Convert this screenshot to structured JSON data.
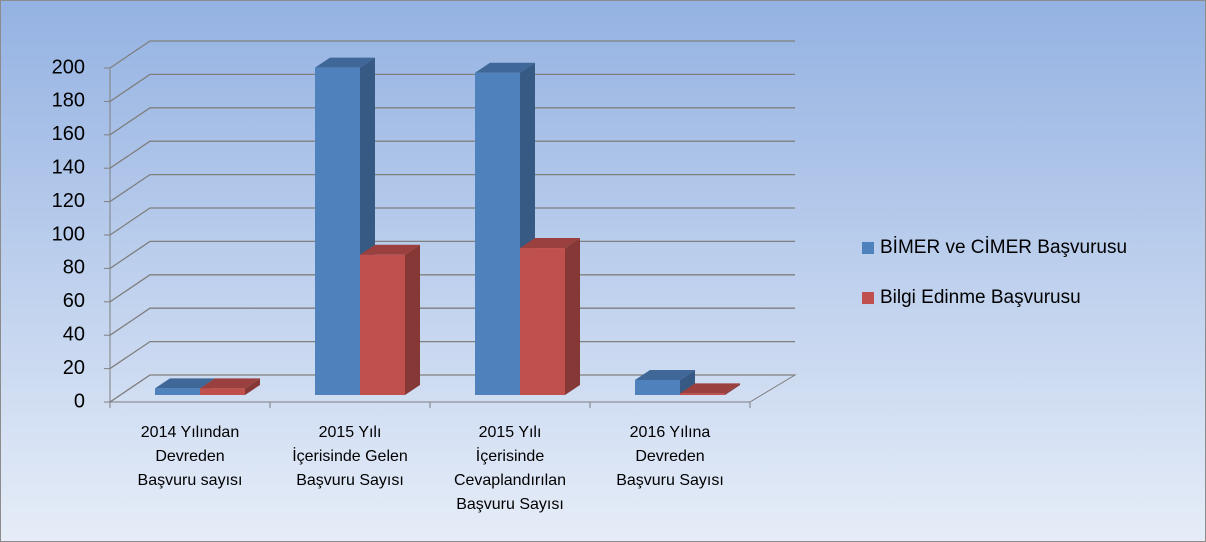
{
  "chart_data": {
    "type": "bar3d",
    "categories": [
      [
        "2014 Yılından",
        "Devreden",
        "Başvuru sayısı"
      ],
      [
        "2015 Yılı",
        "İçerisinde Gelen",
        "Başvuru Sayısı"
      ],
      [
        "2015 Yılı",
        "İçerisinde",
        "Cevaplandırılan",
        "Başvuru Sayısı"
      ],
      [
        "2016 Yılına",
        "Devreden",
        "Başvuru Sayısı"
      ]
    ],
    "series": [
      {
        "name": "BİMER ve CİMER Başvurusu",
        "color": "#4f81bd",
        "values": [
          4,
          196,
          193,
          9
        ]
      },
      {
        "name": "Bilgi Edinme Başvurusu",
        "color": "#c0504d",
        "values": [
          4,
          84,
          88,
          1
        ]
      }
    ],
    "ylim": [
      0,
      200
    ],
    "yticks": [
      0,
      20,
      40,
      60,
      80,
      100,
      120,
      140,
      160,
      180,
      200
    ],
    "grid": true,
    "legend": "right"
  }
}
